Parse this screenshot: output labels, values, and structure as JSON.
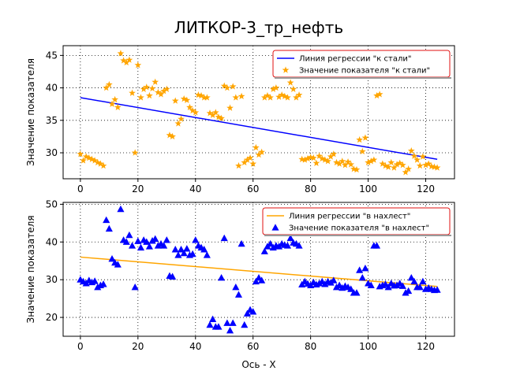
{
  "figure": {
    "title": "ЛИТКОР-3_тр_нефть"
  },
  "chart_data": [
    {
      "type": "scatter",
      "ylabel": "Значение показателя",
      "xlabel": "",
      "xlim": [
        -6,
        130
      ],
      "ylim": [
        26,
        46.5
      ],
      "xticks": [
        0,
        20,
        40,
        60,
        80,
        100,
        120
      ],
      "yticks": [
        30,
        35,
        40,
        45
      ],
      "grid": true,
      "legend_position": "top-right",
      "regression": {
        "name": "Линия регрессии \"к стали\"",
        "x": [
          0,
          124
        ],
        "y": [
          38.5,
          29.0
        ],
        "color": "#0000ff"
      },
      "series": [
        {
          "name": "Значение показателя \"к стали\"",
          "marker": "star",
          "color": "#ffa500",
          "x": [
            0,
            1,
            2,
            3,
            4,
            5,
            6,
            7,
            8,
            9,
            10,
            11,
            12,
            13,
            14,
            15,
            16,
            17,
            18,
            19,
            20,
            21,
            22,
            23,
            24,
            25,
            26,
            27,
            28,
            29,
            30,
            31,
            32,
            33,
            34,
            35,
            36,
            37,
            38,
            39,
            40,
            41,
            42,
            43,
            44,
            45,
            46,
            47,
            48,
            49,
            50,
            51,
            52,
            53,
            54,
            55,
            56,
            57,
            58,
            59,
            60,
            61,
            62,
            63,
            64,
            65,
            66,
            67,
            68,
            69,
            70,
            71,
            72,
            73,
            74,
            75,
            76,
            77,
            78,
            79,
            80,
            81,
            82,
            83,
            84,
            85,
            86,
            87,
            88,
            89,
            90,
            91,
            92,
            93,
            94,
            95,
            96,
            97,
            98,
            99,
            100,
            101,
            102,
            103,
            104,
            105,
            106,
            107,
            108,
            109,
            110,
            111,
            112,
            113,
            114,
            115,
            116,
            117,
            118,
            119,
            120,
            121,
            122,
            123,
            124
          ],
          "y": [
            29.8,
            28.8,
            29.4,
            29.2,
            29.0,
            28.8,
            28.5,
            28.3,
            28.0,
            40.0,
            40.5,
            37.5,
            38.2,
            37.0,
            45.3,
            44.2,
            43.9,
            44.3,
            39.2,
            30.0,
            43.5,
            38.5,
            39.8,
            40.1,
            38.8,
            39.9,
            40.9,
            39.3,
            39.0,
            39.5,
            39.8,
            32.7,
            32.5,
            38.0,
            34.5,
            35.2,
            38.3,
            38.1,
            37.0,
            36.5,
            36.2,
            38.9,
            38.8,
            38.5,
            38.5,
            36.1,
            35.8,
            36.2,
            35.5,
            35.3,
            40.3,
            40.0,
            36.9,
            40.2,
            38.5,
            28.0,
            38.7,
            28.5,
            28.9,
            29.2,
            28.3,
            30.8,
            29.7,
            30.1,
            38.5,
            38.8,
            38.5,
            39.8,
            40.0,
            38.6,
            38.9,
            38.7,
            38.5,
            40.8,
            39.8,
            38.5,
            38.9,
            29.0,
            28.9,
            29.1,
            29.3,
            29.2,
            28.4,
            29.5,
            29.1,
            28.9,
            28.7,
            29.4,
            29.8,
            28.5,
            28.3,
            28.7,
            28.1,
            28.6,
            28.2,
            27.5,
            27.4,
            32.0,
            30.2,
            32.3,
            28.5,
            28.7,
            28.9,
            38.8,
            39.0,
            28.3,
            28.0,
            27.8,
            28.5,
            27.7,
            28.2,
            28.4,
            28.1,
            27.0,
            27.5,
            30.3,
            29.5,
            28.9,
            28.0,
            29.4,
            28.1,
            28.3,
            27.9,
            27.8,
            27.7
          ]
        }
      ]
    },
    {
      "type": "scatter",
      "ylabel": "Значение показателя",
      "xlabel": "Ось - X",
      "xlim": [
        -6,
        130
      ],
      "ylim": [
        15,
        50.5
      ],
      "xticks": [
        0,
        20,
        40,
        60,
        80,
        100,
        120
      ],
      "yticks": [
        20,
        30,
        40,
        50
      ],
      "grid": true,
      "legend_position": "top-right",
      "regression": {
        "name": "Линия регрессии \"в нахлест\"",
        "x": [
          0,
          124
        ],
        "y": [
          36.0,
          28.2
        ],
        "color": "#ffa500"
      },
      "series": [
        {
          "name": "Значение показателя \"в нахлест\"",
          "marker": "triangle",
          "color": "#0000ff",
          "x": [
            0,
            1,
            2,
            3,
            4,
            5,
            6,
            7,
            8,
            9,
            10,
            11,
            12,
            13,
            14,
            15,
            16,
            17,
            18,
            19,
            20,
            21,
            22,
            23,
            24,
            25,
            26,
            27,
            28,
            29,
            30,
            31,
            32,
            33,
            34,
            35,
            36,
            37,
            38,
            39,
            40,
            41,
            42,
            43,
            44,
            45,
            46,
            47,
            48,
            49,
            50,
            51,
            52,
            53,
            54,
            55,
            56,
            57,
            58,
            59,
            60,
            61,
            62,
            63,
            64,
            65,
            66,
            67,
            68,
            69,
            70,
            71,
            72,
            73,
            74,
            75,
            76,
            77,
            78,
            79,
            80,
            81,
            82,
            83,
            84,
            85,
            86,
            87,
            88,
            89,
            90,
            91,
            92,
            93,
            94,
            95,
            96,
            97,
            98,
            99,
            100,
            101,
            102,
            103,
            104,
            105,
            106,
            107,
            108,
            109,
            110,
            111,
            112,
            113,
            114,
            115,
            116,
            117,
            118,
            119,
            120,
            121,
            122,
            123,
            124
          ],
          "y": [
            30.0,
            29.5,
            29.0,
            29.8,
            29.3,
            29.6,
            28.0,
            28.5,
            28.8,
            45.8,
            43.5,
            35.5,
            34.5,
            34.0,
            48.7,
            40.5,
            40.0,
            41.8,
            39.0,
            28.0,
            40.2,
            38.5,
            40.5,
            40.0,
            38.8,
            40.3,
            40.8,
            39.0,
            39.5,
            39.0,
            40.5,
            31.0,
            30.8,
            38.0,
            36.5,
            38.0,
            37.0,
            38.2,
            36.5,
            36.8,
            40.5,
            39.0,
            38.5,
            38.0,
            36.5,
            18.0,
            19.5,
            17.5,
            17.5,
            30.5,
            41.0,
            18.5,
            16.5,
            18.5,
            28.0,
            26.0,
            39.5,
            18.0,
            21.0,
            22.0,
            21.5,
            29.5,
            30.5,
            29.8,
            37.5,
            38.8,
            39.5,
            38.5,
            39.0,
            38.8,
            39.5,
            39.2,
            39.0,
            41.0,
            39.8,
            39.5,
            39.0,
            28.7,
            29.5,
            28.9,
            28.5,
            29.3,
            28.7,
            29.0,
            29.5,
            28.8,
            29.5,
            29.2,
            29.8,
            28.0,
            28.5,
            27.8,
            28.3,
            28.0,
            27.5,
            26.5,
            26.5,
            32.5,
            30.5,
            33.0,
            29.0,
            28.5,
            39.0,
            39.0,
            28.2,
            28.5,
            28.8,
            28.0,
            29.0,
            28.4,
            28.5,
            29.0,
            28.3,
            26.5,
            27.0,
            30.5,
            29.5,
            28.0,
            28.0,
            29.5,
            27.5,
            27.8,
            27.5,
            27.2,
            27.3
          ]
        }
      ]
    }
  ]
}
